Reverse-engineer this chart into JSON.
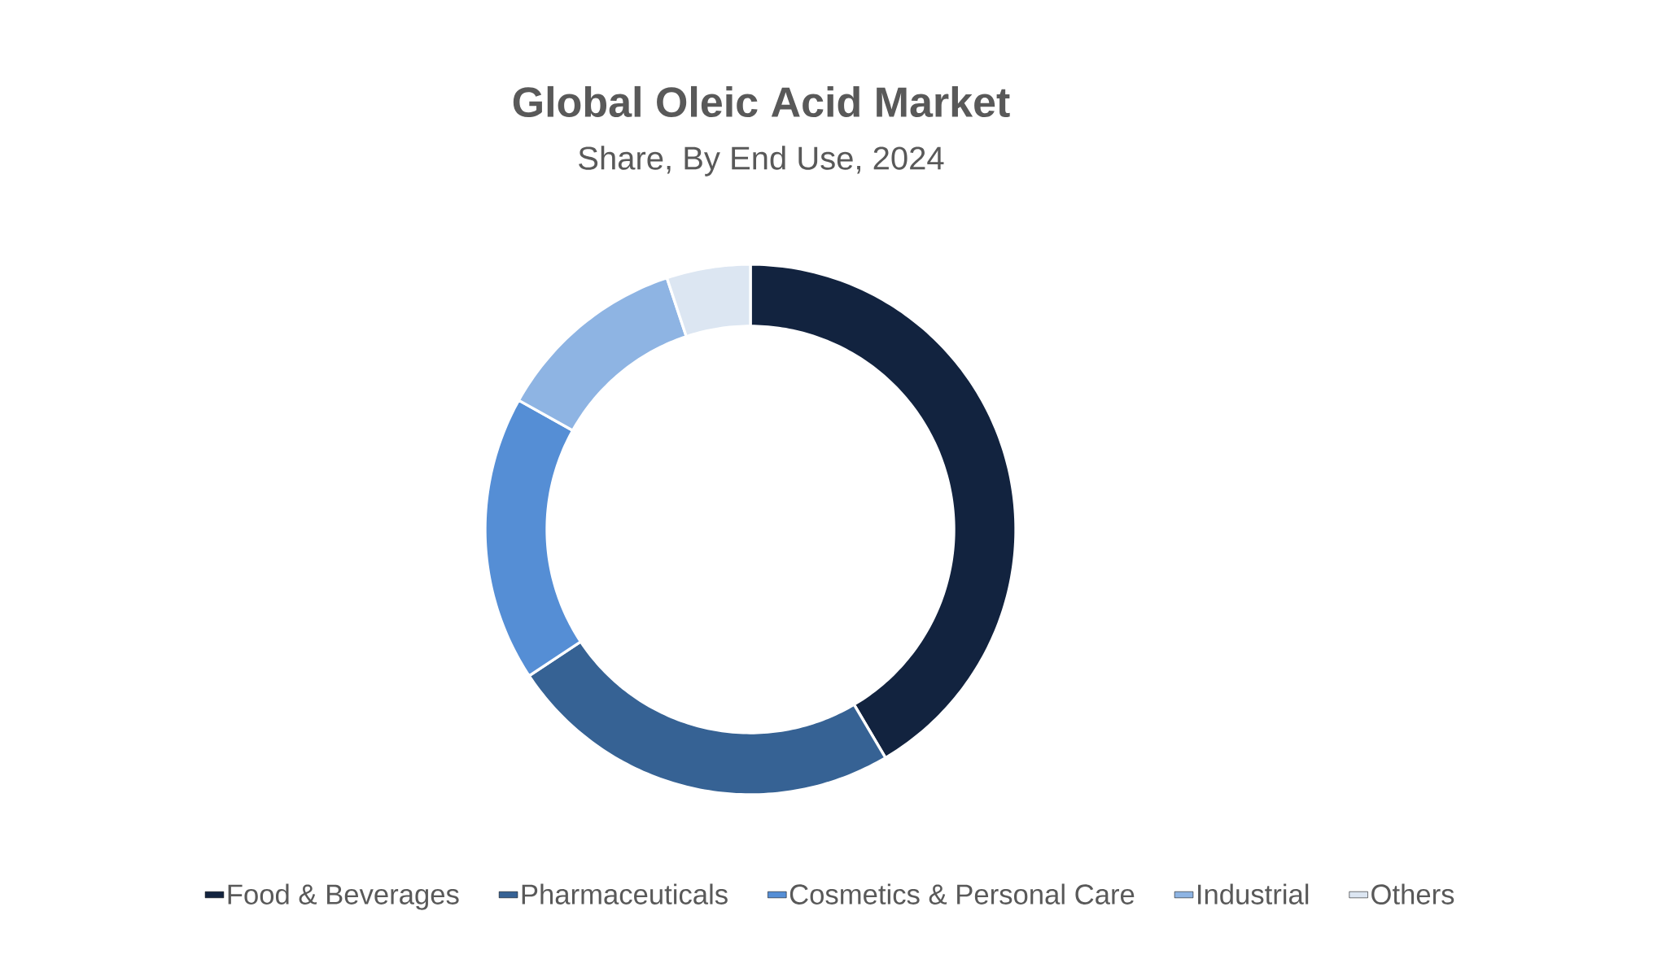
{
  "chart_data": {
    "type": "donut",
    "title": "Global Oleic Acid Market",
    "subtitle": "Share, By End Use, 2024",
    "categories": [
      "Food & Beverages",
      "Pharmaceuticals",
      "Cosmetics & Personal Care",
      "Industrial",
      "Others"
    ],
    "values": [
      41.5,
      24.2,
      17.4,
      11.8,
      5.1
    ],
    "colors": [
      "#12233f",
      "#366294",
      "#558ed5",
      "#8eb4e3",
      "#dce6f2"
    ],
    "legend": "bottom"
  }
}
